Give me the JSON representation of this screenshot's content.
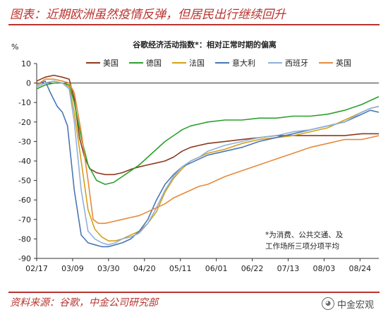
{
  "header": {
    "title": "图表：近期欧洲虽然疫情反弹，但居民出行继续回升"
  },
  "footer": {
    "source": "资料来源：谷歌，中金公司研究部",
    "watermark": "中金宏观"
  },
  "colors": {
    "accent": "#b8342f"
  },
  "chart_data": {
    "type": "line",
    "title": "谷歌经济活动指数*：相对正常时期的偏离",
    "unit": "%",
    "ylim": [
      -90,
      10
    ],
    "yticks": [
      10,
      0,
      -10,
      -20,
      -30,
      -40,
      -50,
      -60,
      -70,
      -80,
      -90
    ],
    "xlim": [
      0,
      200
    ],
    "xticks": [
      {
        "label": "02/17",
        "x": 0
      },
      {
        "label": "03/09",
        "x": 21
      },
      {
        "label": "03/30",
        "x": 42
      },
      {
        "label": "04/20",
        "x": 63
      },
      {
        "label": "05/11",
        "x": 84
      },
      {
        "label": "06/01",
        "x": 105
      },
      {
        "label": "06/22",
        "x": 126
      },
      {
        "label": "07/13",
        "x": 147
      },
      {
        "label": "08/03",
        "x": 168
      },
      {
        "label": "08/24",
        "x": 189
      }
    ],
    "legend_position": "top",
    "note": [
      "*为消费、公共交通、及",
      "工作场所三项分项平均"
    ],
    "series": [
      {
        "name": "美国",
        "color": "#8b3a1e",
        "points": [
          [
            0,
            1
          ],
          [
            5,
            3
          ],
          [
            10,
            4
          ],
          [
            15,
            3
          ],
          [
            19,
            2
          ],
          [
            22,
            -8
          ],
          [
            25,
            -28
          ],
          [
            28,
            -38
          ],
          [
            31,
            -44
          ],
          [
            35,
            -46
          ],
          [
            40,
            -47
          ],
          [
            45,
            -47
          ],
          [
            50,
            -46
          ],
          [
            56,
            -44
          ],
          [
            60,
            -43
          ],
          [
            65,
            -42
          ],
          [
            70,
            -41
          ],
          [
            75,
            -40
          ],
          [
            80,
            -38
          ],
          [
            85,
            -35
          ],
          [
            90,
            -33
          ],
          [
            95,
            -32
          ],
          [
            100,
            -31
          ],
          [
            110,
            -30
          ],
          [
            120,
            -29
          ],
          [
            130,
            -28
          ],
          [
            140,
            -27
          ],
          [
            150,
            -27
          ],
          [
            160,
            -27
          ],
          [
            170,
            -27
          ],
          [
            180,
            -27
          ],
          [
            190,
            -26
          ],
          [
            200,
            -26
          ]
        ]
      },
      {
        "name": "德国",
        "color": "#2ca02c",
        "points": [
          [
            0,
            -3
          ],
          [
            5,
            -1
          ],
          [
            10,
            0
          ],
          [
            15,
            0
          ],
          [
            19,
            -1
          ],
          [
            22,
            -10
          ],
          [
            26,
            -28
          ],
          [
            30,
            -42
          ],
          [
            35,
            -50
          ],
          [
            40,
            -52
          ],
          [
            45,
            -51
          ],
          [
            50,
            -48
          ],
          [
            55,
            -45
          ],
          [
            60,
            -42
          ],
          [
            65,
            -38
          ],
          [
            70,
            -34
          ],
          [
            75,
            -30
          ],
          [
            80,
            -27
          ],
          [
            85,
            -24
          ],
          [
            90,
            -22
          ],
          [
            95,
            -21
          ],
          [
            100,
            -20
          ],
          [
            110,
            -19
          ],
          [
            120,
            -19
          ],
          [
            130,
            -18
          ],
          [
            140,
            -18
          ],
          [
            150,
            -17
          ],
          [
            160,
            -17
          ],
          [
            170,
            -16
          ],
          [
            180,
            -14
          ],
          [
            190,
            -11
          ],
          [
            195,
            -9
          ],
          [
            200,
            -7
          ]
        ]
      },
      {
        "name": "法国",
        "color": "#d4a017",
        "points": [
          [
            0,
            -2
          ],
          [
            5,
            0
          ],
          [
            10,
            1
          ],
          [
            15,
            0
          ],
          [
            19,
            -2
          ],
          [
            22,
            -15
          ],
          [
            26,
            -40
          ],
          [
            30,
            -65
          ],
          [
            34,
            -75
          ],
          [
            38,
            -79
          ],
          [
            42,
            -81
          ],
          [
            46,
            -81
          ],
          [
            50,
            -80
          ],
          [
            55,
            -78
          ],
          [
            60,
            -76
          ],
          [
            65,
            -72
          ],
          [
            70,
            -66
          ],
          [
            75,
            -56
          ],
          [
            80,
            -49
          ],
          [
            85,
            -44
          ],
          [
            90,
            -40
          ],
          [
            95,
            -38
          ],
          [
            100,
            -36
          ],
          [
            110,
            -34
          ],
          [
            120,
            -31
          ],
          [
            130,
            -29
          ],
          [
            140,
            -28
          ],
          [
            150,
            -27
          ],
          [
            160,
            -25
          ],
          [
            170,
            -23
          ],
          [
            180,
            -19
          ],
          [
            190,
            -15
          ],
          [
            195,
            -13
          ],
          [
            200,
            -12
          ]
        ]
      },
      {
        "name": "意大利",
        "color": "#4a76b5",
        "points": [
          [
            0,
            -1
          ],
          [
            5,
            1
          ],
          [
            8,
            -5
          ],
          [
            12,
            -12
          ],
          [
            15,
            -15
          ],
          [
            18,
            -22
          ],
          [
            22,
            -55
          ],
          [
            26,
            -78
          ],
          [
            30,
            -82
          ],
          [
            34,
            -83
          ],
          [
            38,
            -84
          ],
          [
            42,
            -84
          ],
          [
            46,
            -83
          ],
          [
            50,
            -82
          ],
          [
            55,
            -80
          ],
          [
            60,
            -76
          ],
          [
            65,
            -70
          ],
          [
            70,
            -60
          ],
          [
            75,
            -52
          ],
          [
            80,
            -47
          ],
          [
            85,
            -43
          ],
          [
            90,
            -41
          ],
          [
            95,
            -39
          ],
          [
            100,
            -37
          ],
          [
            110,
            -35
          ],
          [
            120,
            -33
          ],
          [
            130,
            -30
          ],
          [
            140,
            -28
          ],
          [
            150,
            -26
          ],
          [
            160,
            -24
          ],
          [
            170,
            -22
          ],
          [
            180,
            -20
          ],
          [
            190,
            -16
          ],
          [
            195,
            -14
          ],
          [
            200,
            -15
          ]
        ]
      },
      {
        "name": "西班牙",
        "color": "#8fb1d9",
        "points": [
          [
            0,
            -2
          ],
          [
            5,
            0
          ],
          [
            10,
            1
          ],
          [
            15,
            0
          ],
          [
            19,
            -3
          ],
          [
            22,
            -20
          ],
          [
            26,
            -55
          ],
          [
            30,
            -76
          ],
          [
            34,
            -80
          ],
          [
            38,
            -82
          ],
          [
            42,
            -83
          ],
          [
            46,
            -82
          ],
          [
            50,
            -80
          ],
          [
            55,
            -79
          ],
          [
            60,
            -77
          ],
          [
            65,
            -72
          ],
          [
            70,
            -64
          ],
          [
            75,
            -55
          ],
          [
            80,
            -48
          ],
          [
            85,
            -43
          ],
          [
            90,
            -40
          ],
          [
            95,
            -38
          ],
          [
            100,
            -35
          ],
          [
            110,
            -32
          ],
          [
            120,
            -30
          ],
          [
            130,
            -28
          ],
          [
            140,
            -27
          ],
          [
            150,
            -25
          ],
          [
            160,
            -24
          ],
          [
            170,
            -22
          ],
          [
            180,
            -20
          ],
          [
            190,
            -15
          ],
          [
            195,
            -13
          ],
          [
            200,
            -12
          ]
        ]
      },
      {
        "name": "英国",
        "color": "#e58a3c",
        "points": [
          [
            0,
            -1
          ],
          [
            5,
            2
          ],
          [
            10,
            2
          ],
          [
            15,
            1
          ],
          [
            19,
            0
          ],
          [
            22,
            -5
          ],
          [
            26,
            -25
          ],
          [
            30,
            -50
          ],
          [
            33,
            -70
          ],
          [
            36,
            -72
          ],
          [
            40,
            -72
          ],
          [
            45,
            -71
          ],
          [
            50,
            -70
          ],
          [
            55,
            -69
          ],
          [
            60,
            -68
          ],
          [
            65,
            -66
          ],
          [
            70,
            -64
          ],
          [
            75,
            -62
          ],
          [
            80,
            -59
          ],
          [
            85,
            -57
          ],
          [
            90,
            -55
          ],
          [
            95,
            -53
          ],
          [
            100,
            -52
          ],
          [
            110,
            -48
          ],
          [
            120,
            -45
          ],
          [
            130,
            -42
          ],
          [
            140,
            -39
          ],
          [
            150,
            -36
          ],
          [
            160,
            -33
          ],
          [
            170,
            -31
          ],
          [
            180,
            -29
          ],
          [
            190,
            -29
          ],
          [
            195,
            -28
          ],
          [
            200,
            -27
          ]
        ]
      }
    ]
  }
}
